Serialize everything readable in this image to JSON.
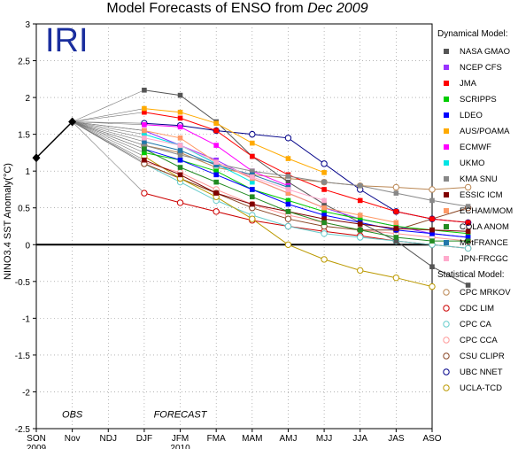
{
  "chart_data": {
    "type": "line",
    "title_prefix": "Model Forecasts of ENSO from",
    "title_date": "Dec 2009",
    "logo": "IRI",
    "ylabel": "NINO3.4 SST Anomaly(°C)",
    "ylim": [
      -2.5,
      3
    ],
    "yticks": [
      -2.5,
      -2,
      -1.5,
      -1,
      -0.5,
      0,
      0.5,
      1,
      1.5,
      2,
      2.5,
      3
    ],
    "x": [
      "SON",
      "Nov",
      "NDJ",
      "DJF",
      "JFM",
      "FMA",
      "MAM",
      "AMJ",
      "MJJ",
      "JJA",
      "JAS",
      "ASO"
    ],
    "year_labels": [
      {
        "label": "2009",
        "at": "SON"
      },
      {
        "label": "2010",
        "at": "JFM"
      }
    ],
    "region_labels": [
      {
        "label": "OBS",
        "at": "Nov"
      },
      {
        "label": "FORECAST",
        "at": "JFM"
      }
    ],
    "grid": true,
    "legend_position": "right",
    "observed": {
      "values": [
        1.18,
        1.67
      ],
      "color": "#000000"
    },
    "dynamical_header": "Dynamical Model:",
    "statistical_header": "Statistical Model:",
    "dynamical": [
      {
        "name": "NASA GMAO",
        "color": "#555555",
        "values": [
          2.1,
          2.03,
          1.67,
          1.2,
          0.85,
          0.55,
          0.3,
          0.05,
          -0.3,
          -0.55
        ]
      },
      {
        "name": "NCEP CFS",
        "color": "#9933ff",
        "values": [
          1.55,
          1.35,
          1.15,
          0.9,
          0.7,
          0.5,
          0.35,
          0.25,
          0.15,
          0.1
        ]
      },
      {
        "name": "JMA",
        "color": "#ff0000",
        "values": [
          1.8,
          1.72,
          1.55,
          1.2,
          0.95,
          0.75,
          0.6,
          0.45,
          0.35,
          0.3
        ]
      },
      {
        "name": "SCRIPPS",
        "color": "#00cc00",
        "values": [
          1.25,
          1.15,
          1.0,
          0.75,
          0.6,
          0.45,
          0.35,
          0.25,
          0.2,
          0.15
        ]
      },
      {
        "name": "LDEO",
        "color": "#0000ff",
        "values": [
          1.3,
          1.15,
          0.95,
          0.75,
          0.55,
          0.4,
          0.3,
          0.2,
          0.15,
          0.1
        ]
      },
      {
        "name": "AUS/POAMA",
        "color": "#ffaa00",
        "values": [
          1.85,
          1.8,
          1.65,
          1.38,
          1.17,
          0.98,
          null,
          null,
          null,
          null
        ]
      },
      {
        "name": "ECMWF",
        "color": "#ff00ff",
        "values": [
          1.63,
          1.6,
          1.35,
          1.0,
          0.8,
          null,
          null,
          null,
          null,
          null
        ]
      },
      {
        "name": "UKMO",
        "color": "#00e5e5",
        "values": [
          1.5,
          1.35,
          1.1,
          0.85,
          null,
          null,
          null,
          null,
          null,
          null
        ]
      },
      {
        "name": "KMA SNU",
        "color": "#888888",
        "values": [
          1.35,
          1.22,
          1.1,
          1.0,
          0.93,
          0.85,
          0.8,
          0.7,
          0.6,
          0.52
        ]
      },
      {
        "name": "ESSIC ICM",
        "color": "#800000",
        "values": [
          1.15,
          0.95,
          0.7,
          0.55,
          0.45,
          0.35,
          0.28,
          0.22,
          0.2,
          0.18
        ]
      },
      {
        "name": "ECHAM/MOM",
        "color": "#ff9966",
        "values": [
          1.55,
          1.45,
          1.12,
          0.9,
          0.7,
          0.5,
          0.4,
          0.3,
          null,
          null
        ]
      },
      {
        "name": "COLA ANOM",
        "color": "#228b22",
        "values": [
          1.3,
          1.05,
          0.85,
          0.65,
          0.45,
          0.3,
          0.2,
          0.1,
          0.05,
          0.05
        ]
      },
      {
        "name": "MetFRANCE",
        "color": "#2277aa",
        "values": [
          1.4,
          1.28,
          1.08,
          0.95,
          0.78,
          null,
          null,
          null,
          null,
          null
        ]
      },
      {
        "name": "JPN-FRCGC",
        "color": "#ffaacc",
        "values": [
          1.45,
          1.35,
          1.12,
          0.92,
          0.75,
          0.6,
          null,
          null,
          null,
          null
        ]
      }
    ],
    "statistical": [
      {
        "name": "CPC MRKOV",
        "color": "#bb8855",
        "values": [
          1.35,
          1.25,
          1.05,
          0.95,
          0.9,
          0.85,
          0.8,
          0.78,
          0.75,
          0.78
        ]
      },
      {
        "name": "CDC LIM",
        "color": "#cc0000",
        "values": [
          0.7,
          0.57,
          0.45,
          0.33,
          0.25,
          0.18,
          0.12,
          0.05,
          0.0,
          -0.05
        ]
      },
      {
        "name": "CPC CA",
        "color": "#66cccc",
        "values": [
          1.1,
          0.85,
          0.6,
          0.4,
          0.25,
          0.15,
          0.1,
          0.05,
          0.0,
          -0.05
        ]
      },
      {
        "name": "CPC CCA",
        "color": "#ff9999",
        "values": [
          1.12,
          0.98,
          0.75,
          0.55,
          0.4,
          0.3,
          0.2,
          0.15,
          0.1,
          0.05
        ]
      },
      {
        "name": "CSU CLIPR",
        "color": "#884422",
        "values": [
          1.1,
          0.9,
          0.7,
          0.5,
          0.35,
          0.25,
          0.2,
          0.2,
          0.35,
          0.5
        ]
      },
      {
        "name": "UBC NNET",
        "color": "#000088",
        "values": [
          1.65,
          1.62,
          1.55,
          1.5,
          1.45,
          1.1,
          0.75,
          0.45,
          0.35,
          0.3
        ]
      },
      {
        "name": "UCLA-TCD",
        "color": "#bb9900",
        "values": [
          1.2,
          0.9,
          0.65,
          0.35,
          0.0,
          -0.2,
          -0.35,
          -0.45,
          -0.57,
          null
        ]
      }
    ]
  }
}
